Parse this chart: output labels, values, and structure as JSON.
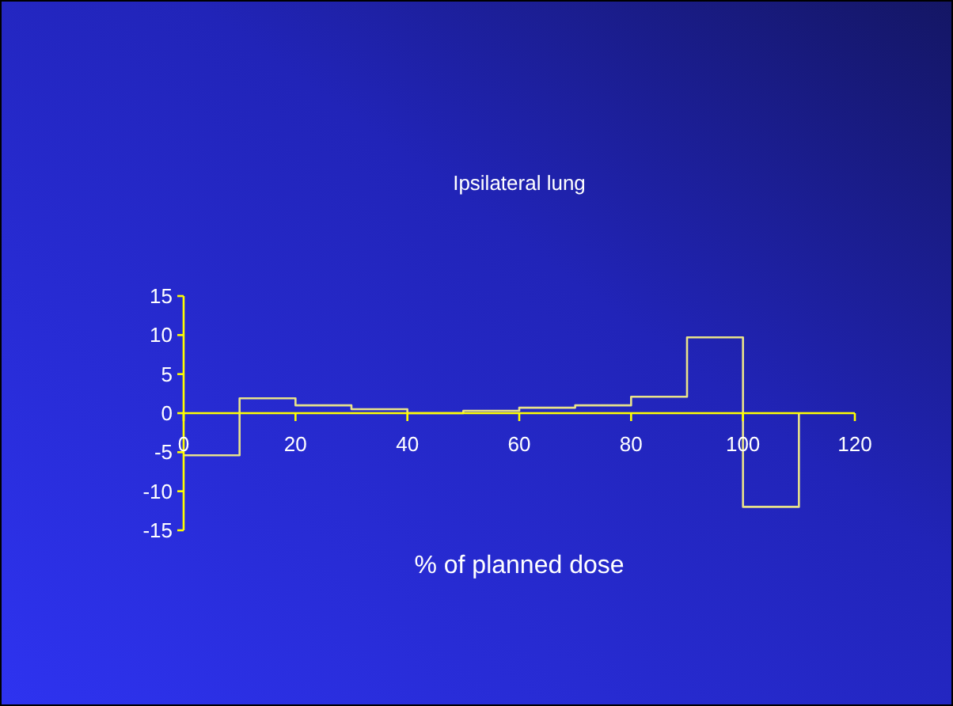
{
  "chart_data": {
    "type": "histogram",
    "title": "Ipsilateral lung",
    "xlabel": "% of planned dose",
    "bins": [
      0,
      10,
      20,
      30,
      40,
      50,
      60,
      70,
      80,
      90,
      100,
      110
    ],
    "values": [
      -5.4,
      1.9,
      1,
      0.5,
      0,
      0.3,
      0.7,
      1,
      2.1,
      9.7,
      -12
    ],
    "color": "#e8e28a",
    "xlim": [
      0,
      120
    ],
    "xticks": [
      0,
      20,
      40,
      60,
      80,
      100,
      120
    ],
    "ylim": [
      -15,
      15
    ],
    "yticks": [
      -15,
      -10,
      -5,
      0,
      5,
      10,
      15
    ],
    "grid": false
  }
}
